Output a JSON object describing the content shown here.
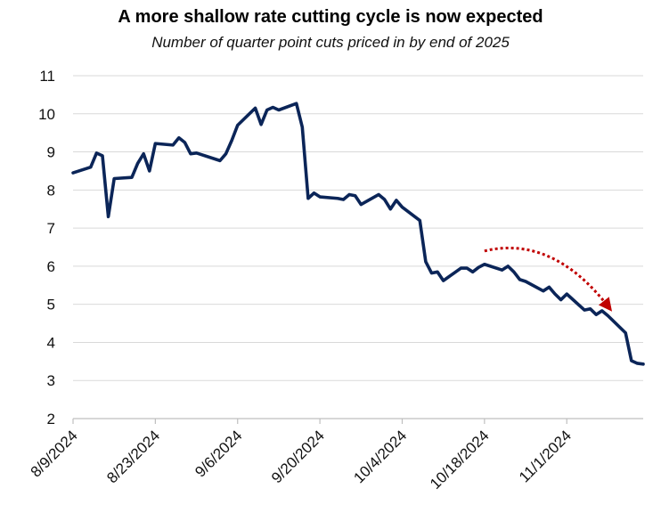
{
  "chart_data": {
    "type": "line",
    "title": "A more shallow rate cutting cycle is now expected",
    "subtitle": "Number of quarter point cuts priced in by end of 2025",
    "xlabel": "",
    "ylabel": "",
    "ylim": [
      2,
      11
    ],
    "yticks": [
      2,
      3,
      4,
      5,
      6,
      7,
      8,
      9,
      10,
      11
    ],
    "xlim": [
      "2024-08-09",
      "2024-11-14"
    ],
    "xticks": [
      "8/9/2024",
      "8/23/2024",
      "9/6/2024",
      "9/20/2024",
      "10/4/2024",
      "10/18/2024",
      "11/1/2024"
    ],
    "grid": "horizontal",
    "line_color": "#0b2558",
    "annotation": {
      "type": "dotted-curved-arrow",
      "color": "#c00000",
      "from": [
        "2024-10-18",
        6.4
      ],
      "to": [
        "2024-11-08",
        4.95
      ]
    },
    "series": [
      {
        "x": [
          "2024-08-09",
          "2024-08-12",
          "2024-08-13",
          "2024-08-14",
          "2024-08-15",
          "2024-08-16",
          "2024-08-19",
          "2024-08-20",
          "2024-08-21",
          "2024-08-22",
          "2024-08-23",
          "2024-08-26",
          "2024-08-27",
          "2024-08-28",
          "2024-08-29",
          "2024-08-30",
          "2024-09-03",
          "2024-09-04",
          "2024-09-05",
          "2024-09-06",
          "2024-09-09",
          "2024-09-10",
          "2024-09-11",
          "2024-09-12",
          "2024-09-13",
          "2024-09-16",
          "2024-09-17",
          "2024-09-18",
          "2024-09-19",
          "2024-09-20",
          "2024-09-23",
          "2024-09-24",
          "2024-09-25",
          "2024-09-26",
          "2024-09-27",
          "2024-09-30",
          "2024-10-01",
          "2024-10-02",
          "2024-10-03",
          "2024-10-04",
          "2024-10-07",
          "2024-10-08",
          "2024-10-09",
          "2024-10-10",
          "2024-10-11",
          "2024-10-14",
          "2024-10-15",
          "2024-10-16",
          "2024-10-17",
          "2024-10-18",
          "2024-10-21",
          "2024-10-22",
          "2024-10-23",
          "2024-10-24",
          "2024-10-25",
          "2024-10-28",
          "2024-10-29",
          "2024-10-30",
          "2024-10-31",
          "2024-11-01",
          "2024-11-04",
          "2024-11-05",
          "2024-11-06",
          "2024-11-07",
          "2024-11-08",
          "2024-11-11",
          "2024-11-12",
          "2024-11-13",
          "2024-11-14"
        ],
        "y": [
          8.45,
          8.6,
          8.97,
          8.9,
          7.3,
          8.3,
          8.33,
          8.7,
          8.95,
          8.5,
          9.22,
          9.18,
          9.37,
          9.25,
          8.95,
          8.97,
          8.77,
          8.95,
          9.3,
          9.7,
          10.15,
          9.72,
          10.1,
          10.17,
          10.1,
          10.27,
          9.65,
          7.78,
          7.92,
          7.82,
          7.78,
          7.75,
          7.88,
          7.85,
          7.62,
          7.88,
          7.75,
          7.5,
          7.73,
          7.55,
          7.2,
          6.12,
          5.82,
          5.85,
          5.62,
          5.95,
          5.95,
          5.85,
          5.97,
          6.05,
          5.9,
          6.0,
          5.85,
          5.65,
          5.6,
          5.35,
          5.45,
          5.27,
          5.12,
          5.27,
          4.85,
          4.88,
          4.73,
          4.83,
          4.7,
          4.25,
          3.52,
          3.45,
          3.43
        ],
        "y_note": "see explicit pairs"
      }
    ]
  }
}
